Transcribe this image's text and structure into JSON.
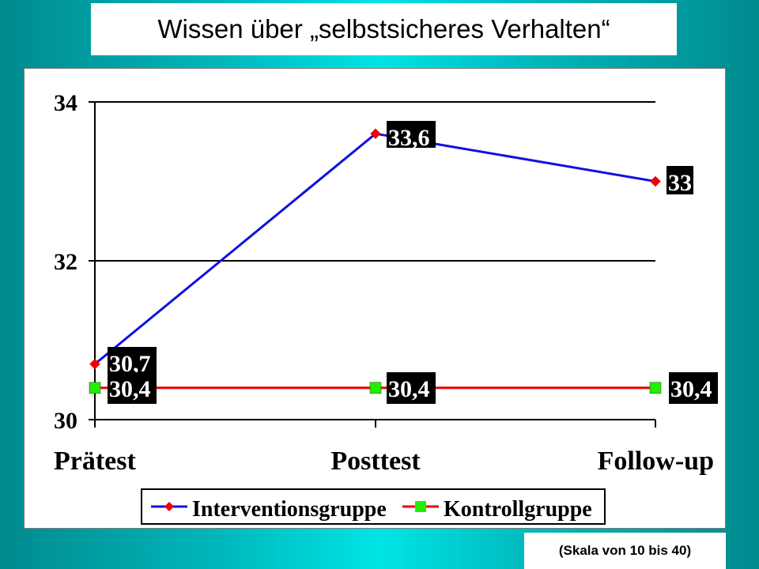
{
  "page": {
    "title": "Wissen über „selbstsicheres Verhalten“",
    "note": "(Skala von 10 bis 40)"
  },
  "colors": {
    "intervention_line": "#1111dd",
    "intervention_marker": "#ee0000",
    "control_line": "#ee0000",
    "control_marker": "#22ee00",
    "label_bg": "#000000",
    "label_text": "#ffffff"
  },
  "chart_data": {
    "type": "line",
    "categories": [
      "Prätest",
      "Posttest",
      "Follow-up"
    ],
    "series": [
      {
        "name": "Interventionsgruppe",
        "values": [
          30.7,
          33.6,
          33
        ],
        "labels": [
          "30,7",
          "33,6",
          "33"
        ],
        "marker": "diamond"
      },
      {
        "name": "Kontrollgruppe",
        "values": [
          30.4,
          30.4,
          30.4
        ],
        "labels": [
          "30,4",
          "30,4",
          "30,4"
        ],
        "marker": "square"
      }
    ],
    "yticks": [
      {
        "value": 30,
        "label": "30"
      },
      {
        "value": 32,
        "label": "32"
      },
      {
        "value": 34,
        "label": "34"
      }
    ],
    "ylim": [
      30,
      34
    ],
    "grid": true,
    "legend": "bottom"
  }
}
